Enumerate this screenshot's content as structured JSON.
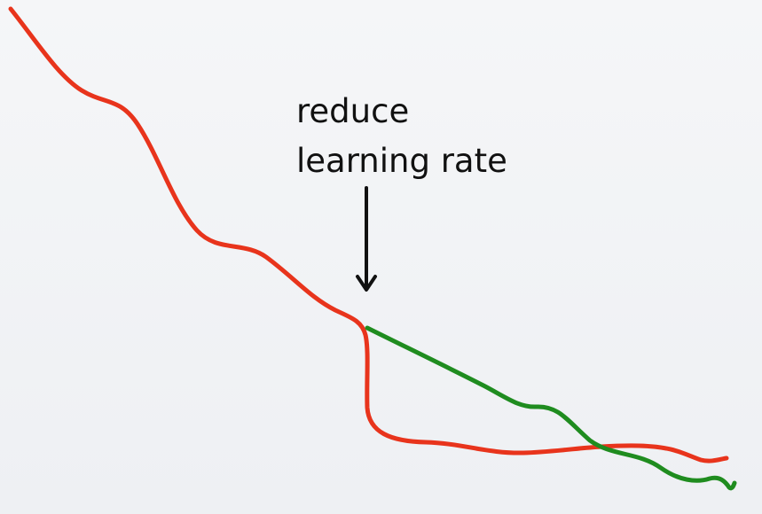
{
  "annotation": {
    "line1": "reduce",
    "line2": "learning rate"
  },
  "colors": {
    "original_curve": "#e8341c",
    "reduced_lr_curve": "#1f8c1f",
    "arrow": "#111111"
  }
}
